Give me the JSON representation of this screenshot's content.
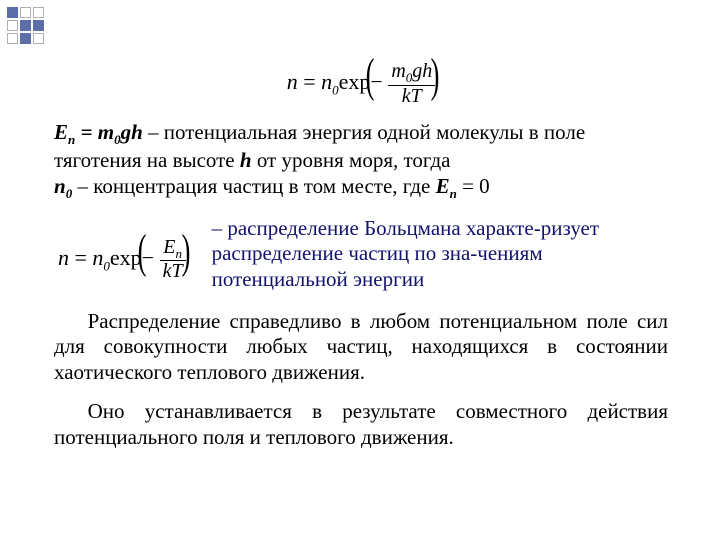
{
  "deco": {
    "grid": [
      [
        "f",
        "o",
        "o"
      ],
      [
        "o",
        "f",
        "f"
      ],
      [
        "o",
        "f",
        "o"
      ]
    ],
    "fill": "#5b6ea8",
    "outline": "#b0b0b0"
  },
  "formula1": {
    "lhs_var": "n",
    "equals": "=",
    "rhs_n0": "n",
    "rhs_sub0": "0",
    "exp_label": "exp",
    "minus": "−",
    "frac_num": "m",
    "frac_num_sub": "0",
    "frac_num_rest": "gh",
    "frac_den": "kT"
  },
  "def_line1_pre": "E",
  "def_line1_sub": "n",
  "def_line1_mid": " = m",
  "def_line1_sub2": "0",
  "def_line1_rest": "gh",
  "def_line1_dash": " – ",
  "def_line1_text": "потенциальная энергия одной молекулы в поле тяготения на высоте ",
  "def_line1_h": "h",
  "def_line1_tail": " от уровня моря, тогда",
  "def_line2_pre": "n",
  "def_line2_sub": "0",
  "def_line2_dash": " – ",
  "def_line2_text": "концентрация частиц в том месте, где ",
  "def_line2_E": "E",
  "def_line2_Esub": "n",
  "def_line2_tail": " = 0",
  "formula2": {
    "lhs_var": "n",
    "equals": "=",
    "rhs_n0": "n",
    "rhs_sub0": "0",
    "exp_label": "exp",
    "minus": "−",
    "frac_num_E": "E",
    "frac_num_sub": "n",
    "frac_den": "kT"
  },
  "blue_dash": "– ",
  "blue_text": "распределение Больцмана характе-ризует распределение частиц по зна-чениям потенциальной энергии",
  "para2": "Распределение справедливо в любом потенциальном поле сил для совокупности любых частиц, находящихся в состоянии хаотического теплового движения.",
  "para3": "Оно устанавливается в результате совместного действия потенциального поля и теплового движения.",
  "colors": {
    "text": "#000000",
    "accent": "#12126e",
    "bg": "#ffffff"
  },
  "fontsize": {
    "body": 21,
    "formula": 22,
    "sub": 13
  }
}
